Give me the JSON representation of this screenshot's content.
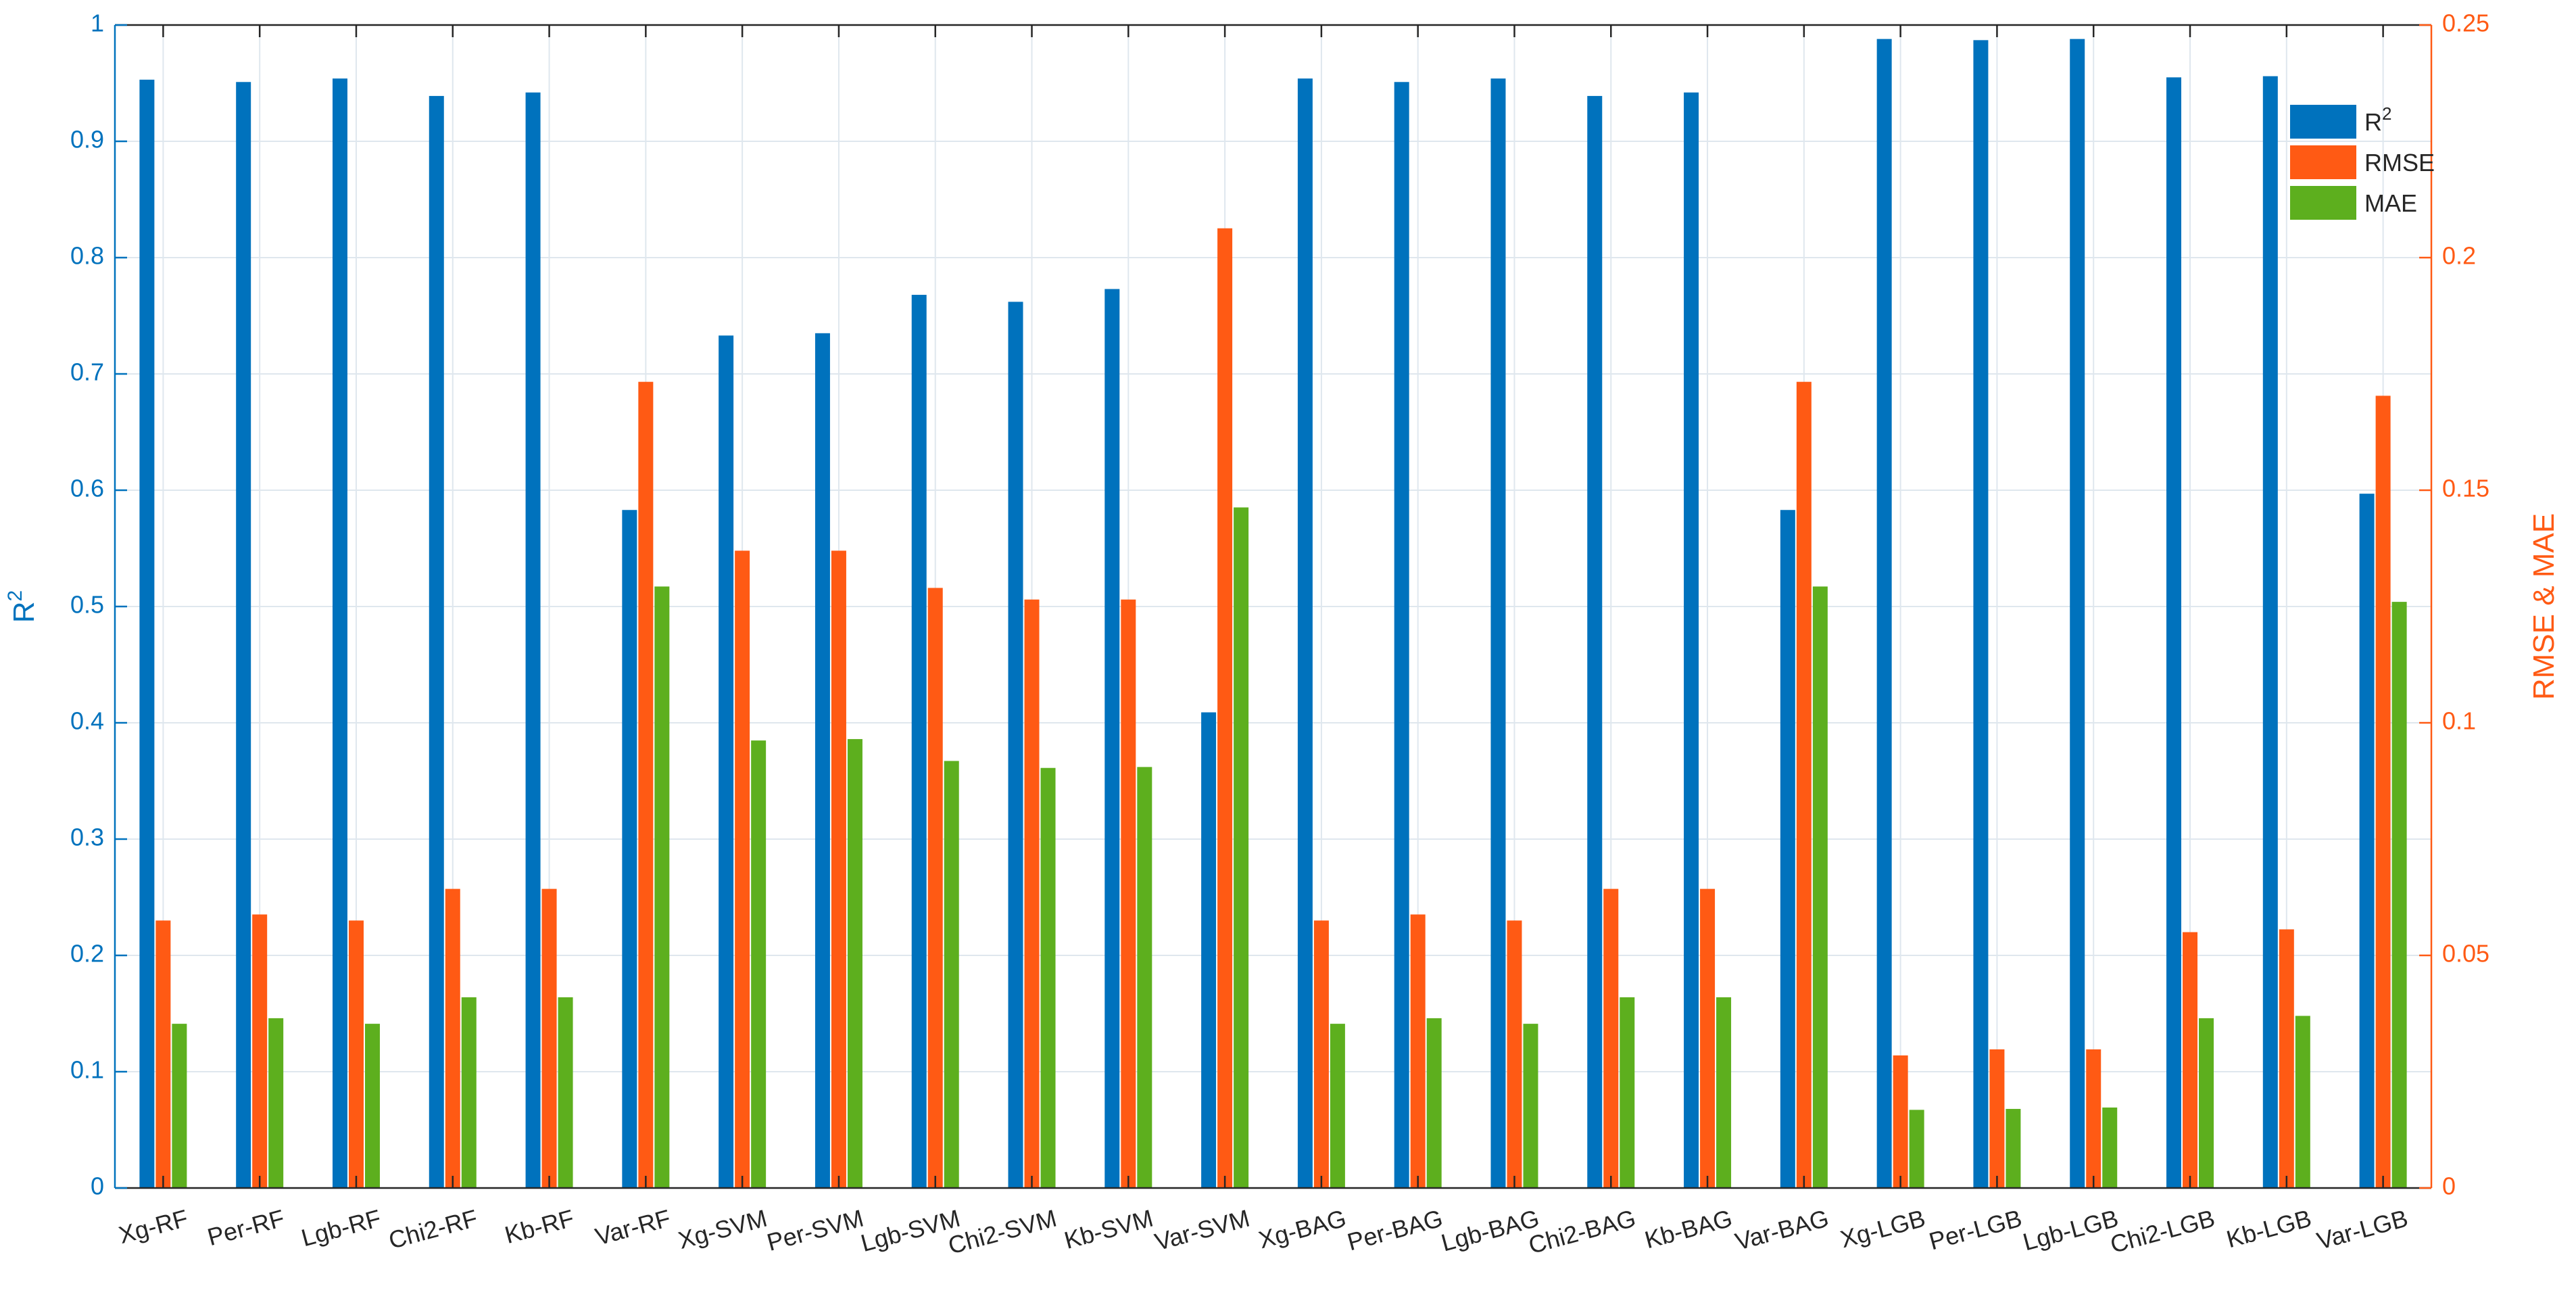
{
  "chart_data": {
    "type": "bar",
    "categories": [
      "Xg-RF",
      "Per-RF",
      "Lgb-RF",
      "Chi2-RF",
      "Kb-RF",
      "Var-RF",
      "Xg-SVM",
      "Per-SVM",
      "Lgb-SVM",
      "Chi2-SVM",
      "Kb-SVM",
      "Var-SVM",
      "Xg-BAG",
      "Per-BAG",
      "Lgb-BAG",
      "Chi2-BAG",
      "Kb-BAG",
      "Var-BAG",
      "Xg-LGB",
      "Per-LGB",
      "Lgb-LGB",
      "Chi2-LGB",
      "Kb-LGB",
      "Var-LGB"
    ],
    "series": [
      {
        "name": "R2",
        "axis": "left",
        "color": "#0072BD",
        "values": [
          0.953,
          0.951,
          0.954,
          0.939,
          0.942,
          0.583,
          0.733,
          0.735,
          0.768,
          0.762,
          0.773,
          0.409,
          0.954,
          0.951,
          0.954,
          0.939,
          0.942,
          0.583,
          0.988,
          0.987,
          0.988,
          0.955,
          0.956,
          0.597
        ]
      },
      {
        "name": "RMSE",
        "axis": "right",
        "color": "#FF5A14",
        "values": [
          0.0575,
          0.0588,
          0.0575,
          0.0643,
          0.0643,
          0.1733,
          0.137,
          0.137,
          0.129,
          0.1265,
          0.1265,
          0.2063,
          0.0575,
          0.0588,
          0.0575,
          0.0643,
          0.0643,
          0.1733,
          0.0285,
          0.0298,
          0.0298,
          0.055,
          0.0556,
          0.1703
        ]
      },
      {
        "name": "MAE",
        "axis": "right",
        "color": "#5DAF1E",
        "values": [
          0.0353,
          0.0365,
          0.0353,
          0.041,
          0.041,
          0.1293,
          0.0962,
          0.0965,
          0.0918,
          0.0903,
          0.0905,
          0.1463,
          0.0353,
          0.0365,
          0.0353,
          0.041,
          0.041,
          0.1293,
          0.0168,
          0.017,
          0.0173,
          0.0365,
          0.037,
          0.126
        ]
      }
    ],
    "left_axis": {
      "label_main": "R",
      "label_sup": "2",
      "ylim": [
        0,
        1
      ],
      "ticks": [
        "0",
        "0.1",
        "0.2",
        "0.3",
        "0.4",
        "0.5",
        "0.6",
        "0.7",
        "0.8",
        "0.9",
        "1"
      ],
      "color": "#0072BD"
    },
    "right_axis": {
      "label": "RMSE & MAE",
      "ylim": [
        0,
        0.25
      ],
      "ticks": [
        "0",
        "0.05",
        "0.1",
        "0.15",
        "0.2",
        "0.25"
      ],
      "color": "#FF5A14"
    },
    "legend": {
      "placement": "top-right",
      "entries": [
        {
          "label_main": "R",
          "label_sup": "2"
        },
        {
          "label_main": "RMSE"
        },
        {
          "label_main": "MAE"
        }
      ]
    },
    "grid": true
  }
}
